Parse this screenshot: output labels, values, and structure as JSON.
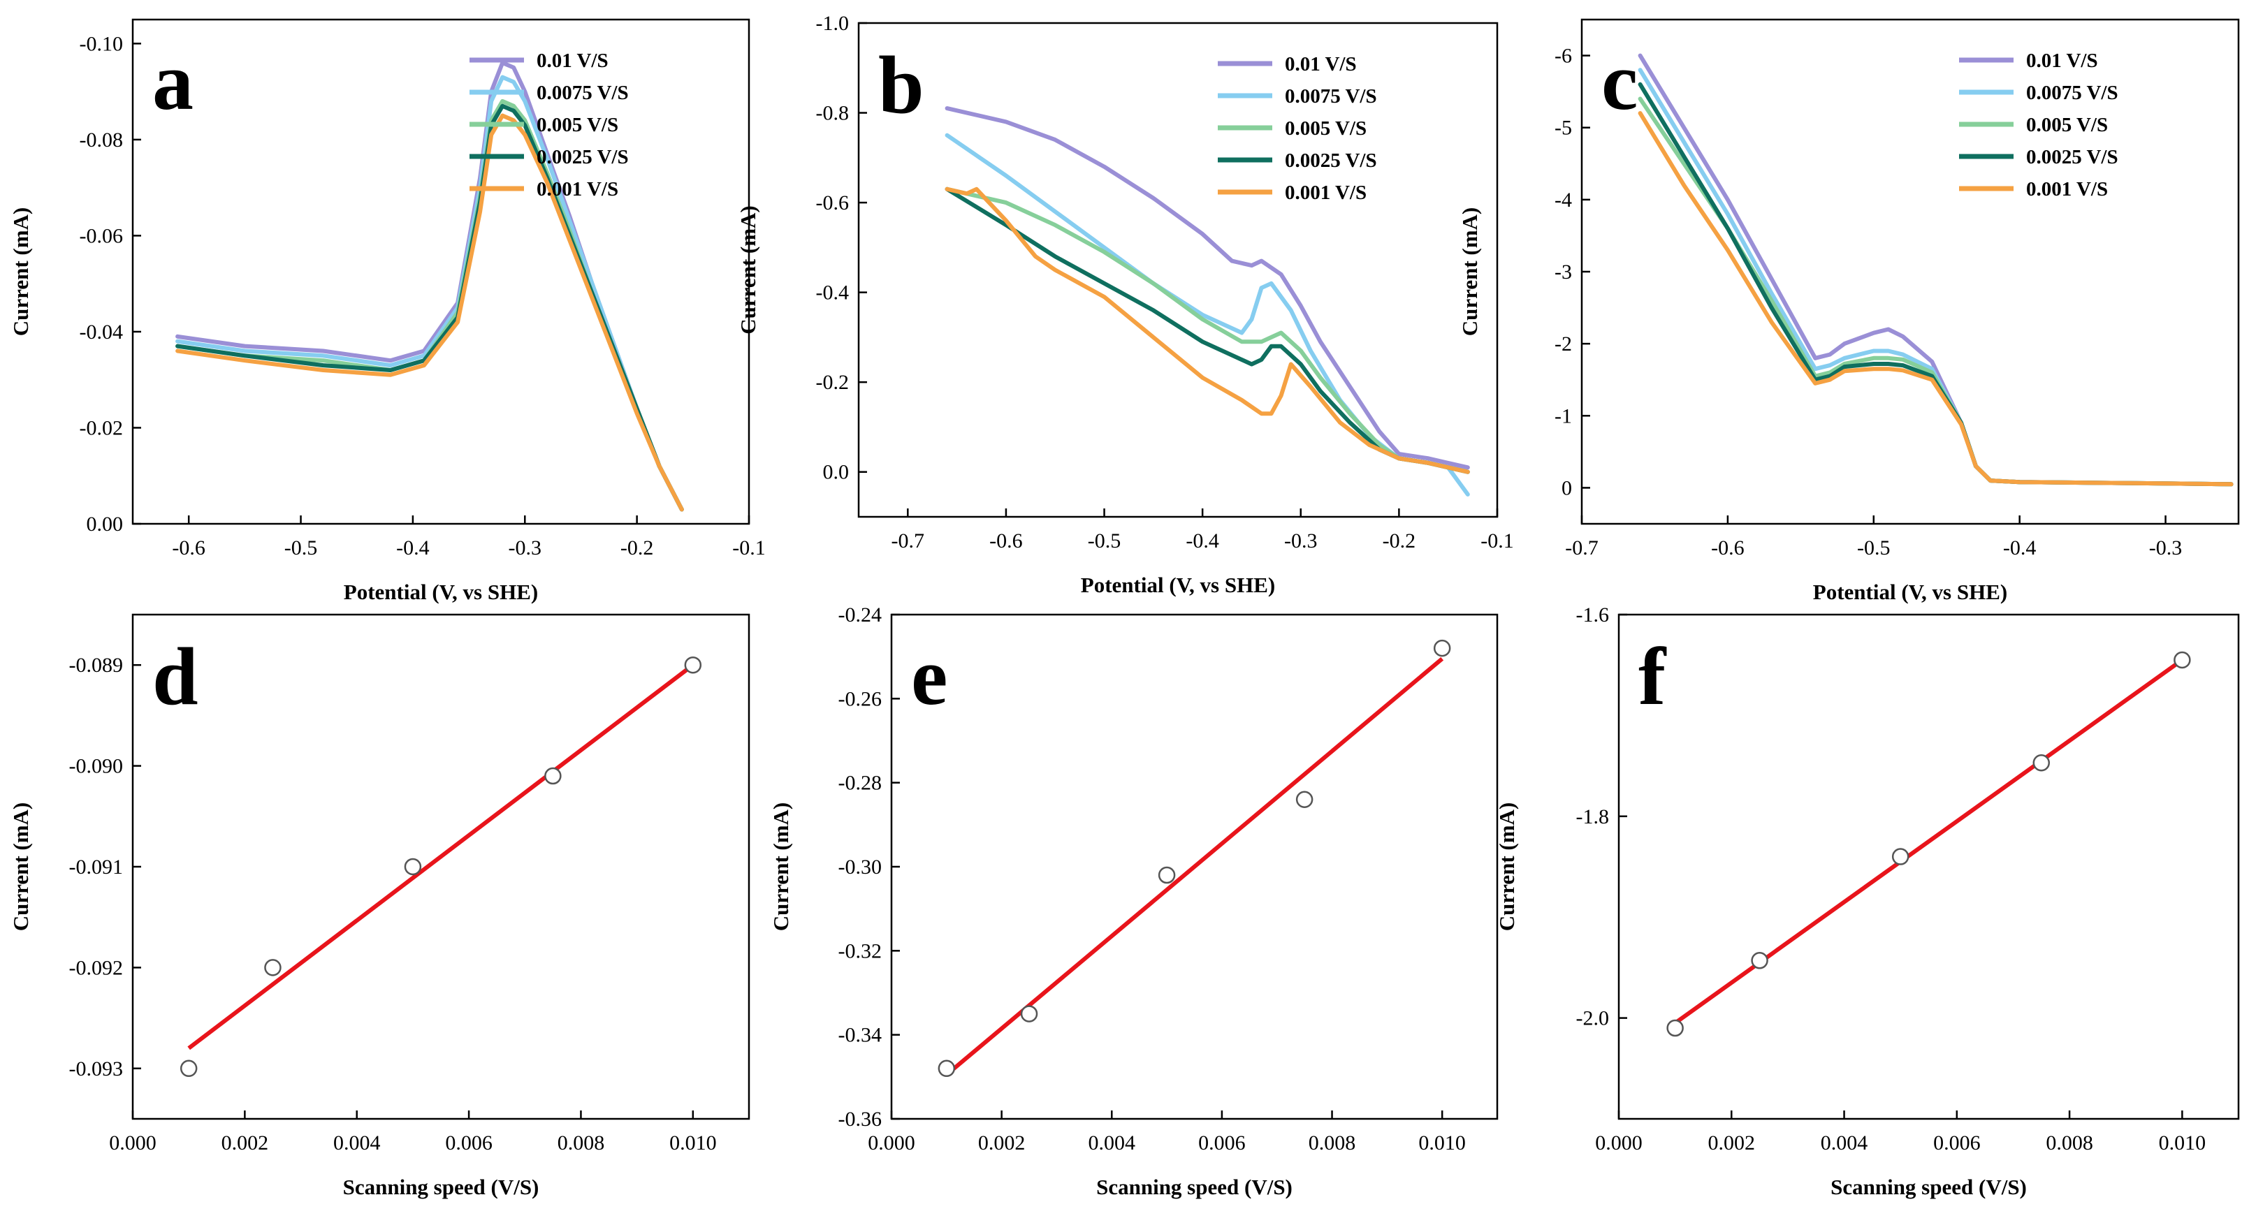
{
  "colors": {
    "v001": "#9a8fd6",
    "v0075": "#86cdf0",
    "v005": "#86cf9a",
    "v0025": "#0f6f5f",
    "v0001": "#f5a142",
    "fit_line": "#e8141b",
    "marker": "#555555"
  },
  "chart_data": [
    {
      "id": "a",
      "type": "line",
      "panel_label": "a",
      "xlabel": "Potential (V, vs SHE)",
      "ylabel": "Current (mA)",
      "xlim": [
        -0.65,
        -0.1
      ],
      "ylim": [
        0.0,
        -0.105
      ],
      "xticks": [
        -0.6,
        -0.5,
        -0.4,
        -0.3,
        -0.2,
        -0.1
      ],
      "xtick_labels": [
        "-0.6",
        "-0.5",
        "-0.4",
        "-0.3",
        "-0.2",
        "-0.1"
      ],
      "yticks": [
        0.0,
        -0.02,
        -0.04,
        -0.06,
        -0.08,
        -0.1
      ],
      "ytick_labels": [
        "0.00",
        "-0.02",
        "-0.04",
        "-0.06",
        "-0.08",
        "-0.10"
      ],
      "legend_position": "top-right",
      "series": [
        {
          "name": "0.01 V/S",
          "color_key": "v001",
          "x": [
            -0.61,
            -0.55,
            -0.48,
            -0.42,
            -0.39,
            -0.36,
            -0.34,
            -0.33,
            -0.32,
            -0.31,
            -0.3,
            -0.28,
            -0.26,
            -0.24,
            -0.22,
            -0.2,
            -0.18,
            -0.16
          ],
          "y": [
            -0.039,
            -0.037,
            -0.036,
            -0.034,
            -0.036,
            -0.046,
            -0.072,
            -0.09,
            -0.096,
            -0.095,
            -0.09,
            -0.077,
            -0.064,
            -0.05,
            -0.037,
            -0.024,
            -0.012,
            -0.003
          ]
        },
        {
          "name": "0.0075 V/S",
          "color_key": "v0075",
          "x": [
            -0.61,
            -0.55,
            -0.48,
            -0.42,
            -0.39,
            -0.36,
            -0.34,
            -0.33,
            -0.32,
            -0.31,
            -0.3,
            -0.28,
            -0.26,
            -0.24,
            -0.22,
            -0.2,
            -0.18,
            -0.16
          ],
          "y": [
            -0.038,
            -0.036,
            -0.035,
            -0.033,
            -0.035,
            -0.045,
            -0.07,
            -0.088,
            -0.093,
            -0.092,
            -0.088,
            -0.076,
            -0.063,
            -0.05,
            -0.037,
            -0.024,
            -0.012,
            -0.003
          ]
        },
        {
          "name": "0.005 V/S",
          "color_key": "v005",
          "x": [
            -0.61,
            -0.55,
            -0.48,
            -0.42,
            -0.39,
            -0.36,
            -0.34,
            -0.33,
            -0.32,
            -0.31,
            -0.3,
            -0.28,
            -0.26,
            -0.24,
            -0.22,
            -0.2,
            -0.18,
            -0.16
          ],
          "y": [
            -0.037,
            -0.035,
            -0.034,
            -0.032,
            -0.034,
            -0.044,
            -0.068,
            -0.084,
            -0.088,
            -0.087,
            -0.084,
            -0.073,
            -0.061,
            -0.048,
            -0.036,
            -0.024,
            -0.012,
            -0.003
          ]
        },
        {
          "name": "0.0025 V/S",
          "color_key": "v0025",
          "x": [
            -0.61,
            -0.55,
            -0.48,
            -0.42,
            -0.39,
            -0.36,
            -0.34,
            -0.33,
            -0.32,
            -0.31,
            -0.3,
            -0.28,
            -0.26,
            -0.24,
            -0.22,
            -0.2,
            -0.18,
            -0.16
          ],
          "y": [
            -0.037,
            -0.035,
            -0.033,
            -0.032,
            -0.034,
            -0.043,
            -0.067,
            -0.083,
            -0.087,
            -0.086,
            -0.083,
            -0.072,
            -0.06,
            -0.048,
            -0.036,
            -0.024,
            -0.012,
            -0.003
          ]
        },
        {
          "name": "0.001 V/S",
          "color_key": "v0001",
          "x": [
            -0.61,
            -0.55,
            -0.48,
            -0.42,
            -0.39,
            -0.36,
            -0.34,
            -0.33,
            -0.32,
            -0.31,
            -0.3,
            -0.28,
            -0.26,
            -0.24,
            -0.22,
            -0.2,
            -0.18,
            -0.16
          ],
          "y": [
            -0.036,
            -0.034,
            -0.032,
            -0.031,
            -0.033,
            -0.042,
            -0.065,
            -0.081,
            -0.085,
            -0.084,
            -0.081,
            -0.071,
            -0.059,
            -0.047,
            -0.035,
            -0.023,
            -0.012,
            -0.003
          ]
        }
      ]
    },
    {
      "id": "b",
      "type": "line",
      "panel_label": "b",
      "xlabel": "Potential (V, vs SHE)",
      "ylabel": "Current (mA)",
      "xlim": [
        -0.75,
        -0.1
      ],
      "ylim": [
        0.1,
        -1.0
      ],
      "xticks": [
        -0.7,
        -0.6,
        -0.5,
        -0.4,
        -0.3,
        -0.2,
        -0.1
      ],
      "xtick_labels": [
        "-0.7",
        "-0.6",
        "-0.5",
        "-0.4",
        "-0.3",
        "-0.2",
        "-0.1"
      ],
      "yticks": [
        0.0,
        -0.2,
        -0.4,
        -0.6,
        -0.8,
        -1.0
      ],
      "ytick_labels": [
        "0.0",
        "-0.2",
        "-0.4",
        "-0.6",
        "-0.8",
        "-1.0"
      ],
      "legend_position": "top-right",
      "series": [
        {
          "name": "0.01 V/S",
          "color_key": "v001",
          "x": [
            -0.66,
            -0.6,
            -0.55,
            -0.5,
            -0.45,
            -0.4,
            -0.37,
            -0.35,
            -0.34,
            -0.32,
            -0.3,
            -0.28,
            -0.25,
            -0.22,
            -0.2,
            -0.17,
            -0.15,
            -0.13
          ],
          "y": [
            -0.81,
            -0.78,
            -0.74,
            -0.68,
            -0.61,
            -0.53,
            -0.47,
            -0.46,
            -0.47,
            -0.44,
            -0.37,
            -0.29,
            -0.19,
            -0.09,
            -0.04,
            -0.03,
            -0.02,
            -0.01
          ]
        },
        {
          "name": "0.0075 V/S",
          "color_key": "v0075",
          "x": [
            -0.66,
            -0.6,
            -0.55,
            -0.5,
            -0.45,
            -0.4,
            -0.36,
            -0.35,
            -0.34,
            -0.33,
            -0.31,
            -0.29,
            -0.26,
            -0.23,
            -0.2,
            -0.17,
            -0.15,
            -0.13
          ],
          "y": [
            -0.75,
            -0.66,
            -0.58,
            -0.5,
            -0.42,
            -0.35,
            -0.31,
            -0.34,
            -0.41,
            -0.42,
            -0.36,
            -0.27,
            -0.16,
            -0.08,
            -0.03,
            -0.02,
            -0.01,
            0.05
          ]
        },
        {
          "name": "0.005 V/S",
          "color_key": "v005",
          "x": [
            -0.66,
            -0.6,
            -0.55,
            -0.5,
            -0.45,
            -0.4,
            -0.36,
            -0.34,
            -0.33,
            -0.32,
            -0.3,
            -0.28,
            -0.25,
            -0.22,
            -0.2,
            -0.17,
            -0.15,
            -0.13
          ],
          "y": [
            -0.63,
            -0.6,
            -0.55,
            -0.49,
            -0.42,
            -0.34,
            -0.29,
            -0.29,
            -0.3,
            -0.31,
            -0.27,
            -0.21,
            -0.13,
            -0.06,
            -0.03,
            -0.02,
            -0.01,
            0.0
          ]
        },
        {
          "name": "0.0025 V/S",
          "color_key": "v0025",
          "x": [
            -0.66,
            -0.6,
            -0.55,
            -0.5,
            -0.45,
            -0.4,
            -0.35,
            -0.34,
            -0.33,
            -0.32,
            -0.3,
            -0.28,
            -0.25,
            -0.22,
            -0.2,
            -0.17,
            -0.15,
            -0.13
          ],
          "y": [
            -0.63,
            -0.55,
            -0.48,
            -0.42,
            -0.36,
            -0.29,
            -0.24,
            -0.25,
            -0.28,
            -0.28,
            -0.24,
            -0.18,
            -0.11,
            -0.05,
            -0.03,
            -0.02,
            -0.01,
            0.0
          ]
        },
        {
          "name": "0.001 V/S",
          "color_key": "v0001",
          "x": [
            -0.66,
            -0.64,
            -0.63,
            -0.6,
            -0.57,
            -0.55,
            -0.5,
            -0.45,
            -0.4,
            -0.36,
            -0.34,
            -0.33,
            -0.32,
            -0.31,
            -0.29,
            -0.26,
            -0.23,
            -0.2,
            -0.17,
            -0.15,
            -0.13
          ],
          "y": [
            -0.63,
            -0.62,
            -0.63,
            -0.56,
            -0.48,
            -0.45,
            -0.39,
            -0.3,
            -0.21,
            -0.16,
            -0.13,
            -0.13,
            -0.17,
            -0.24,
            -0.19,
            -0.11,
            -0.06,
            -0.03,
            -0.02,
            -0.01,
            0.0
          ]
        }
      ]
    },
    {
      "id": "c",
      "type": "line",
      "panel_label": "c",
      "xlabel": "Potential (V, vs SHE)",
      "ylabel": "Current (mA)",
      "xlim": [
        -0.7,
        -0.25
      ],
      "ylim": [
        0.5,
        -6.5
      ],
      "xticks": [
        -0.7,
        -0.6,
        -0.5,
        -0.4,
        -0.3
      ],
      "xtick_labels": [
        "-0.7",
        "-0.6",
        "-0.5",
        "-0.4",
        "-0.3"
      ],
      "yticks": [
        0,
        -1,
        -2,
        -3,
        -4,
        -5,
        -6
      ],
      "ytick_labels": [
        "0",
        "-1",
        "-2",
        "-3",
        "-4",
        "-5",
        "-6"
      ],
      "legend_position": "top-right",
      "series": [
        {
          "name": "0.01 V/S",
          "color_key": "v001",
          "x": [
            -0.66,
            -0.63,
            -0.6,
            -0.57,
            -0.54,
            -0.53,
            -0.52,
            -0.5,
            -0.49,
            -0.48,
            -0.46,
            -0.44,
            -0.43,
            -0.42,
            -0.4,
            -0.35,
            -0.3,
            -0.255
          ],
          "y": [
            -6.0,
            -5.0,
            -4.0,
            -2.9,
            -1.8,
            -1.85,
            -2.0,
            -2.15,
            -2.2,
            -2.1,
            -1.75,
            -0.9,
            -0.3,
            -0.1,
            -0.08,
            -0.07,
            -0.06,
            -0.05
          ]
        },
        {
          "name": "0.0075 V/S",
          "color_key": "v0075",
          "x": [
            -0.66,
            -0.63,
            -0.6,
            -0.57,
            -0.54,
            -0.53,
            -0.52,
            -0.5,
            -0.49,
            -0.48,
            -0.46,
            -0.44,
            -0.43,
            -0.42,
            -0.4,
            -0.35,
            -0.3,
            -0.255
          ],
          "y": [
            -5.8,
            -4.8,
            -3.8,
            -2.7,
            -1.65,
            -1.7,
            -1.8,
            -1.9,
            -1.9,
            -1.85,
            -1.65,
            -0.9,
            -0.3,
            -0.1,
            -0.08,
            -0.07,
            -0.06,
            -0.05
          ]
        },
        {
          "name": "0.005 V/S",
          "color_key": "v005",
          "x": [
            -0.66,
            -0.63,
            -0.6,
            -0.57,
            -0.54,
            -0.53,
            -0.52,
            -0.5,
            -0.49,
            -0.48,
            -0.46,
            -0.44,
            -0.43,
            -0.42,
            -0.4,
            -0.35,
            -0.3,
            -0.255
          ],
          "y": [
            -5.4,
            -4.5,
            -3.6,
            -2.6,
            -1.55,
            -1.6,
            -1.72,
            -1.8,
            -1.8,
            -1.78,
            -1.6,
            -0.9,
            -0.3,
            -0.1,
            -0.08,
            -0.07,
            -0.06,
            -0.05
          ]
        },
        {
          "name": "0.0025 V/S",
          "color_key": "v0025",
          "x": [
            -0.66,
            -0.63,
            -0.6,
            -0.57,
            -0.54,
            -0.53,
            -0.52,
            -0.5,
            -0.49,
            -0.48,
            -0.46,
            -0.44,
            -0.43,
            -0.42,
            -0.4,
            -0.35,
            -0.3,
            -0.255
          ],
          "y": [
            -5.6,
            -4.6,
            -3.6,
            -2.5,
            -1.5,
            -1.55,
            -1.68,
            -1.72,
            -1.72,
            -1.7,
            -1.55,
            -0.9,
            -0.3,
            -0.1,
            -0.08,
            -0.07,
            -0.06,
            -0.05
          ]
        },
        {
          "name": "0.001 V/S",
          "color_key": "v0001",
          "x": [
            -0.66,
            -0.63,
            -0.6,
            -0.57,
            -0.54,
            -0.53,
            -0.52,
            -0.5,
            -0.49,
            -0.48,
            -0.46,
            -0.44,
            -0.43,
            -0.42,
            -0.4,
            -0.35,
            -0.3,
            -0.255
          ],
          "y": [
            -5.2,
            -4.2,
            -3.3,
            -2.3,
            -1.45,
            -1.5,
            -1.62,
            -1.65,
            -1.65,
            -1.63,
            -1.5,
            -0.88,
            -0.3,
            -0.1,
            -0.08,
            -0.07,
            -0.06,
            -0.05
          ]
        }
      ]
    },
    {
      "id": "d",
      "type": "scatter",
      "panel_label": "d",
      "xlabel": "Scanning speed (V/S)",
      "ylabel": "Current (mA)",
      "xlim": [
        0.0,
        0.011
      ],
      "ylim": [
        -0.0935,
        -0.0885
      ],
      "xticks": [
        0.0,
        0.002,
        0.004,
        0.006,
        0.008,
        0.01
      ],
      "xtick_labels": [
        "0.000",
        "0.002",
        "0.004",
        "0.006",
        "0.008",
        "0.010"
      ],
      "yticks": [
        -0.093,
        -0.092,
        -0.091,
        -0.09,
        -0.089
      ],
      "ytick_labels": [
        "-0.093",
        "-0.092",
        "-0.091",
        "-0.090",
        "-0.089"
      ],
      "x": [
        0.001,
        0.0025,
        0.005,
        0.0075,
        0.01
      ],
      "y": [
        -0.093,
        -0.092,
        -0.091,
        -0.0901,
        -0.089
      ],
      "fit_line": {
        "x": [
          0.001,
          0.01
        ],
        "y": [
          -0.0928,
          -0.089
        ]
      }
    },
    {
      "id": "e",
      "type": "scatter",
      "panel_label": "e",
      "xlabel": "Scanning speed (V/S)",
      "ylabel": "Current (mA)",
      "xlim": [
        0.0,
        0.011
      ],
      "ylim": [
        -0.36,
        -0.24
      ],
      "xticks": [
        0.0,
        0.002,
        0.004,
        0.006,
        0.008,
        0.01
      ],
      "xtick_labels": [
        "0.000",
        "0.002",
        "0.004",
        "0.006",
        "0.008",
        "0.010"
      ],
      "yticks": [
        -0.36,
        -0.34,
        -0.32,
        -0.3,
        -0.28,
        -0.26,
        -0.24
      ],
      "ytick_labels": [
        "-0.36",
        "-0.34",
        "-0.32",
        "-0.30",
        "-0.28",
        "-0.26",
        "-0.24"
      ],
      "x": [
        0.001,
        0.0025,
        0.005,
        0.0075,
        0.01
      ],
      "y": [
        -0.348,
        -0.335,
        -0.302,
        -0.284,
        -0.248
      ],
      "fit_line": {
        "x": [
          0.001,
          0.01
        ],
        "y": [
          -0.3495,
          -0.2505
        ]
      }
    },
    {
      "id": "f",
      "type": "scatter",
      "panel_label": "f",
      "xlabel": "Scanning speed (V/S)",
      "ylabel": "Current (mA)",
      "xlim": [
        0.0,
        0.011
      ],
      "ylim": [
        -2.1,
        -1.6
      ],
      "xticks": [
        0.0,
        0.002,
        0.004,
        0.006,
        0.008,
        0.01
      ],
      "xtick_labels": [
        "0.000",
        "0.002",
        "0.004",
        "0.006",
        "0.008",
        "0.010"
      ],
      "yticks": [
        -2.0,
        -1.8,
        -1.6
      ],
      "ytick_labels": [
        "-2.0",
        "-1.8",
        "-1.6"
      ],
      "x": [
        0.001,
        0.0025,
        0.005,
        0.0075,
        0.01
      ],
      "y": [
        -2.01,
        -1.943,
        -1.84,
        -1.747,
        -1.645
      ],
      "fit_line": {
        "x": [
          0.001,
          0.01
        ],
        "y": [
          -2.005,
          -1.645
        ]
      }
    }
  ]
}
